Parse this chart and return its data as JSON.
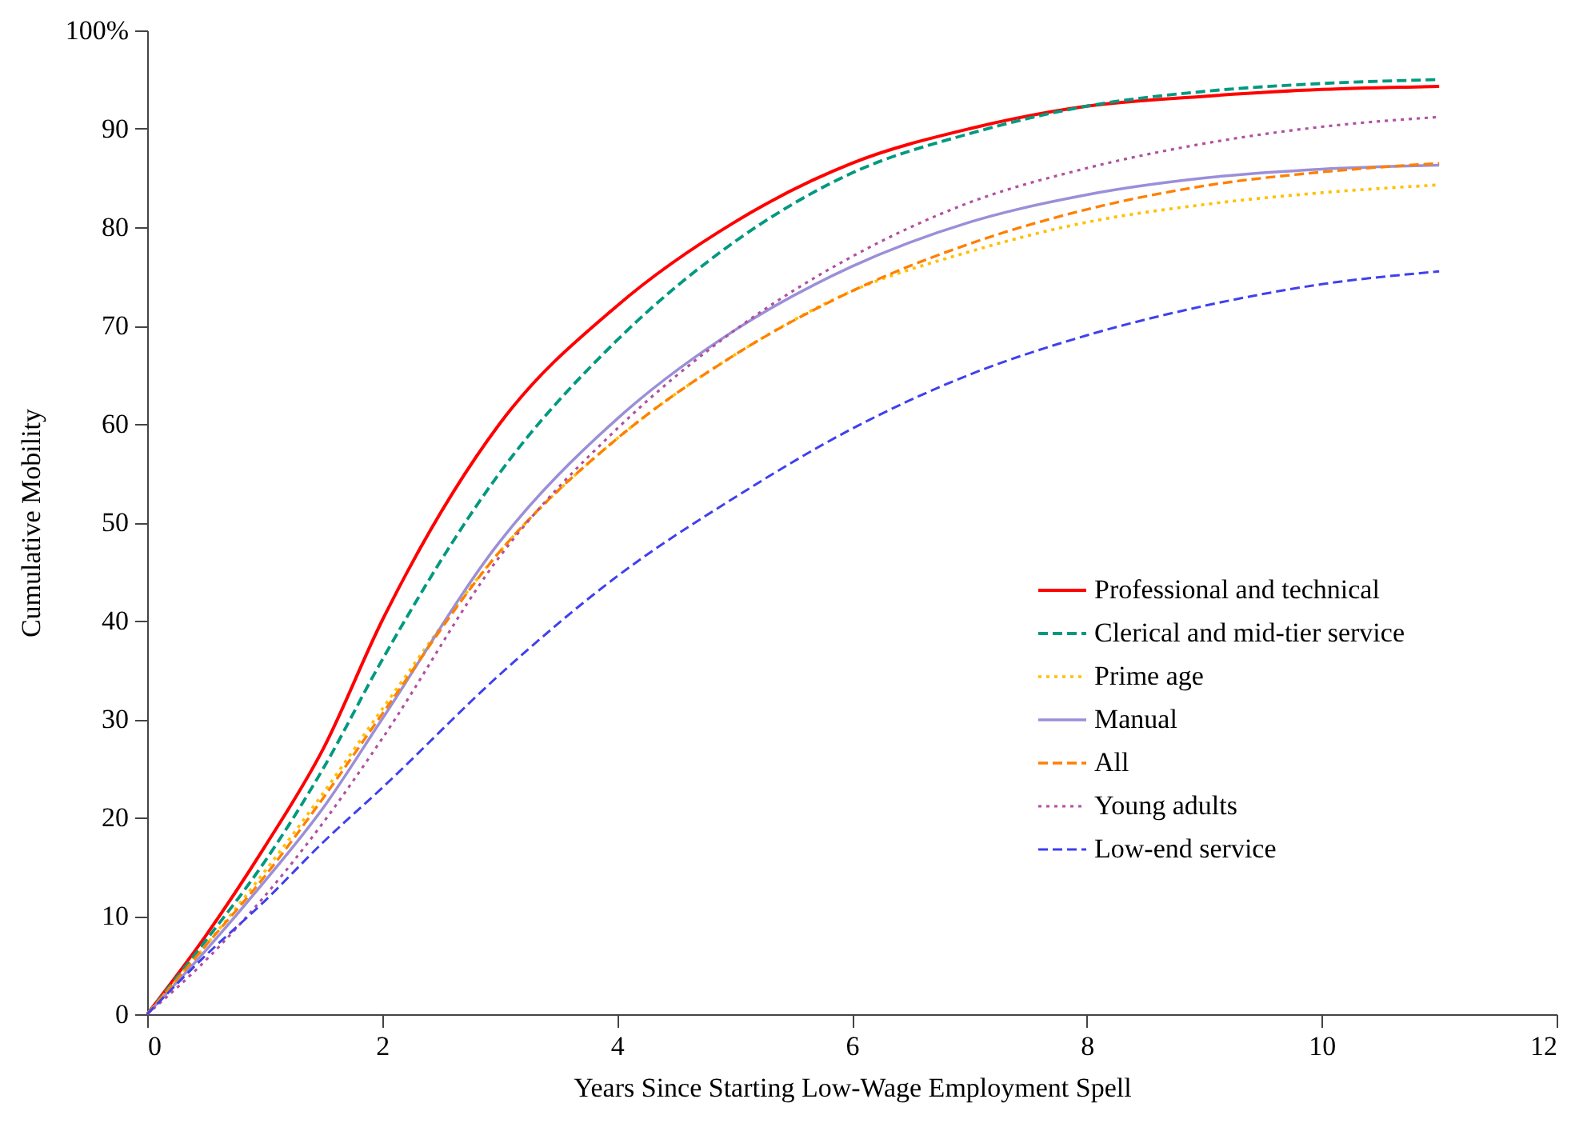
{
  "chart_data": {
    "type": "line",
    "xlabel": "Years Since Starting Low-Wage Employment Spell",
    "ylabel": "Cumulative Mobility",
    "x": [
      0,
      0.5,
      1,
      1.5,
      2,
      3,
      4,
      5,
      6,
      7,
      8,
      9,
      10,
      11
    ],
    "series": [
      {
        "name": "Professional and technical",
        "color": "#ff0000",
        "line_style": "solid",
        "values": [
          0,
          8,
          17,
          27,
          40,
          60,
          72,
          80.5,
          86.5,
          90,
          92.3,
          93.3,
          94,
          94.3
        ]
      },
      {
        "name": "Clerical and mid-tier service",
        "color": "#009980",
        "line_style": "dashed",
        "values": [
          0,
          7.5,
          15.5,
          25,
          36,
          55,
          68.5,
          78.5,
          85.5,
          89.5,
          92.3,
          93.8,
          94.6,
          95
        ]
      },
      {
        "name": "Prime age",
        "color": "#ffc000",
        "line_style": "dotted",
        "values": [
          0,
          7,
          14.5,
          22.5,
          31,
          47,
          58.5,
          67,
          73.5,
          77.5,
          80.5,
          82.3,
          83.5,
          84.3
        ]
      },
      {
        "name": "Manual",
        "color": "#9b8fd8",
        "line_style": "solid",
        "values": [
          0,
          6.5,
          13.5,
          21,
          30,
          48,
          60.5,
          69.5,
          76,
          80.5,
          83.3,
          85,
          85.9,
          86.3
        ]
      },
      {
        "name": "All",
        "color": "#ff8000",
        "line_style": "dashed",
        "values": [
          0,
          7,
          14,
          22,
          30.5,
          47,
          58.5,
          67,
          73.5,
          78.3,
          81.8,
          84.2,
          85.6,
          86.5
        ]
      },
      {
        "name": "Young adults",
        "color": "#b050a0",
        "line_style": "dotted",
        "values": [
          0,
          5.5,
          12,
          19.5,
          28,
          46.5,
          59.5,
          69.5,
          77,
          82.5,
          86,
          88.5,
          90.2,
          91.2
        ]
      },
      {
        "name": "Low-end service",
        "color": "#4040ee",
        "line_style": "dashed",
        "values": [
          0,
          6,
          11.5,
          17.5,
          23,
          34.5,
          44.5,
          52.5,
          59.5,
          65,
          69,
          72,
          74.2,
          75.5
        ]
      }
    ],
    "xlim": [
      0,
      12
    ],
    "xticks": [
      0,
      2,
      4,
      6,
      8,
      10,
      12
    ],
    "ylim": [
      0,
      100
    ],
    "yticks": [
      0,
      10,
      20,
      30,
      40,
      50,
      60,
      70,
      80,
      90,
      {
        "value": 100,
        "label": "100%"
      }
    ],
    "grid": false,
    "legend": "bottom right",
    "marker": "none"
  }
}
